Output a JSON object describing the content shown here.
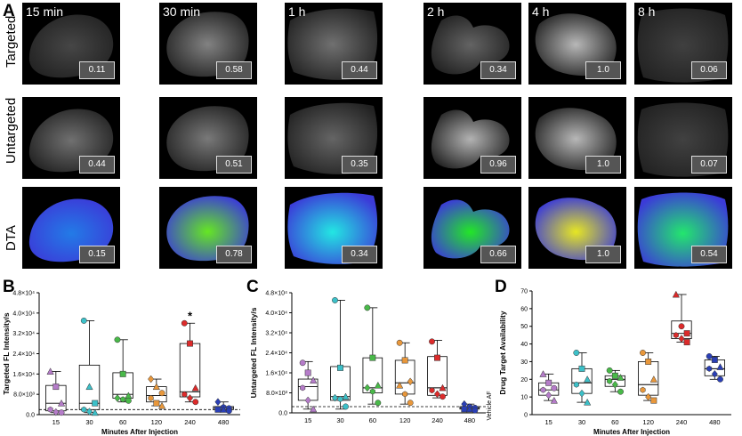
{
  "panels": {
    "A": "A",
    "B": "B",
    "C": "C",
    "D": "D"
  },
  "row_labels": {
    "targeted": "Targeted",
    "untargeted": "Untargeted",
    "dta": "DTA"
  },
  "time_labels": [
    "15 min",
    "30 min",
    "1 h",
    "2 h",
    "4 h",
    "8 h"
  ],
  "tile_values": {
    "targeted": [
      "0.11",
      "0.58",
      "0.44",
      "0.34",
      "1.0",
      "0.06"
    ],
    "untargeted": [
      "0.44",
      "0.51",
      "0.35",
      "0.96",
      "1.0",
      "0.07"
    ],
    "dta": [
      "0.15",
      "0.78",
      "0.34",
      "0.66",
      "1.0",
      "0.54"
    ]
  },
  "colors": {
    "15": "#b57cc9",
    "30": "#3cc0c8",
    "60": "#49b949",
    "120": "#e8973b",
    "240": "#dc2b2b",
    "480": "#2a3fb5"
  },
  "chart_data": [
    {
      "panel": "B",
      "type": "box",
      "ylabel": "Targeted FL Intensity/s",
      "xlabel": "Minutes After Injection",
      "categories": [
        "15",
        "30",
        "60",
        "120",
        "240",
        "480"
      ],
      "ytick_labels": [
        "0.0",
        "8.0×10³",
        "1.6×10⁴",
        "2.4×10⁴",
        "3.2×10⁴",
        "4.0×10⁴",
        "4.8×10⁴"
      ],
      "ylim": [
        0,
        48000
      ],
      "boxes": [
        {
          "min": 800,
          "q1": 1500,
          "median": 4500,
          "q3": 11500,
          "max": 17000
        },
        {
          "min": 800,
          "q1": 2000,
          "median": 4500,
          "q3": 19500,
          "max": 37000
        },
        {
          "min": 5000,
          "q1": 6500,
          "median": 8000,
          "q3": 16500,
          "max": 29500
        },
        {
          "min": 3500,
          "q1": 5000,
          "median": 7500,
          "q3": 11000,
          "max": 14000
        },
        {
          "min": 5000,
          "q1": 7000,
          "median": 9000,
          "q3": 28000,
          "max": 36000
        },
        {
          "min": 1500,
          "q1": 2000,
          "median": 2600,
          "q3": 3200,
          "max": 5000
        }
      ],
      "points": [
        [
          {
            "y": 17000,
            "m": "tri"
          },
          {
            "y": 11000,
            "m": "sq"
          },
          {
            "y": 4500,
            "m": "tri"
          },
          {
            "y": 2000,
            "m": "hex"
          },
          {
            "y": 1000,
            "m": "dia"
          },
          {
            "y": 800,
            "m": "circ"
          }
        ],
        [
          {
            "y": 37000,
            "m": "circ"
          },
          {
            "y": 11000,
            "m": "tri"
          },
          {
            "y": 4500,
            "m": "sq"
          },
          {
            "y": 2000,
            "m": "hex"
          },
          {
            "y": 1200,
            "m": "dia"
          },
          {
            "y": 800,
            "m": "tri"
          }
        ],
        [
          {
            "y": 29500,
            "m": "circ"
          },
          {
            "y": 16000,
            "m": "sq"
          },
          {
            "y": 7500,
            "m": "tri"
          },
          {
            "y": 6500,
            "m": "dia"
          },
          {
            "y": 6000,
            "m": "hex"
          },
          {
            "y": 5500,
            "m": "circ"
          }
        ],
        [
          {
            "y": 14000,
            "m": "dia"
          },
          {
            "y": 11000,
            "m": "tri"
          },
          {
            "y": 8500,
            "m": "circ"
          },
          {
            "y": 6500,
            "m": "hex"
          },
          {
            "y": 4500,
            "m": "sq"
          },
          {
            "y": 3500,
            "m": "tri"
          }
        ],
        [
          {
            "y": 36000,
            "m": "circ"
          },
          {
            "y": 28000,
            "m": "sq"
          },
          {
            "y": 10500,
            "m": "tri"
          },
          {
            "y": 8000,
            "m": "hex"
          },
          {
            "y": 6500,
            "m": "dia"
          },
          {
            "y": 5000,
            "m": "circ"
          }
        ],
        [
          {
            "y": 5000,
            "m": "dia"
          },
          {
            "y": 3000,
            "m": "hex"
          },
          {
            "y": 2500,
            "m": "circ"
          },
          {
            "y": 2000,
            "m": "sq"
          },
          {
            "y": 2000,
            "m": "tri"
          },
          {
            "y": 1500,
            "m": "circ"
          }
        ]
      ],
      "dashed_line": 2000,
      "annotation": {
        "category": "240",
        "text": "*"
      }
    },
    {
      "panel": "C",
      "type": "box",
      "ylabel": "Untargeted FL Intensity/s",
      "xlabel": "",
      "side_label": "Vehicle AF",
      "categories": [
        "15",
        "30",
        "60",
        "120",
        "240",
        "480"
      ],
      "ytick_labels": [
        "0.0",
        "8.0×10³",
        "1.6×10⁴",
        "2.4×10⁴",
        "3.2×10⁴",
        "4.0×10⁴",
        "4.8×10⁴"
      ],
      "ylim": [
        0,
        48000
      ],
      "boxes": [
        {
          "min": 1500,
          "q1": 5000,
          "median": 10500,
          "q3": 13500,
          "max": 20500
        },
        {
          "min": 1500,
          "q1": 5000,
          "median": 6500,
          "q3": 18500,
          "max": 45000
        },
        {
          "min": 3500,
          "q1": 8000,
          "median": 10000,
          "q3": 22000,
          "max": 42000
        },
        {
          "min": 3500,
          "q1": 7500,
          "median": 12000,
          "q3": 21000,
          "max": 28000
        },
        {
          "min": 6000,
          "q1": 7000,
          "median": 10000,
          "q3": 22500,
          "max": 29000
        },
        {
          "min": 1000,
          "q1": 1500,
          "median": 2000,
          "q3": 2500,
          "max": 3500
        }
      ],
      "points": [
        [
          {
            "y": 20000,
            "m": "circ"
          },
          {
            "y": 16000,
            "m": "sq"
          },
          {
            "y": 13000,
            "m": "tri"
          },
          {
            "y": 10000,
            "m": "hex"
          },
          {
            "y": 5000,
            "m": "dia"
          },
          {
            "y": 1500,
            "m": "tri"
          }
        ],
        [
          {
            "y": 45000,
            "m": "circ"
          },
          {
            "y": 18000,
            "m": "sq"
          },
          {
            "y": 6500,
            "m": "tri"
          },
          {
            "y": 6000,
            "m": "dia"
          },
          {
            "y": 5500,
            "m": "hex"
          },
          {
            "y": 2500,
            "m": "circ"
          }
        ],
        [
          {
            "y": 42000,
            "m": "circ"
          },
          {
            "y": 22000,
            "m": "sq"
          },
          {
            "y": 11000,
            "m": "tri"
          },
          {
            "y": 10000,
            "m": "dia"
          },
          {
            "y": 8500,
            "m": "hex"
          },
          {
            "y": 4000,
            "m": "circ"
          }
        ],
        [
          {
            "y": 28000,
            "m": "circ"
          },
          {
            "y": 21000,
            "m": "sq"
          },
          {
            "y": 12500,
            "m": "dia"
          },
          {
            "y": 11000,
            "m": "tri"
          },
          {
            "y": 7500,
            "m": "hex"
          },
          {
            "y": 4000,
            "m": "circ"
          }
        ],
        [
          {
            "y": 28500,
            "m": "circ"
          },
          {
            "y": 22000,
            "m": "sq"
          },
          {
            "y": 10000,
            "m": "tri"
          },
          {
            "y": 9000,
            "m": "hex"
          },
          {
            "y": 7500,
            "m": "dia"
          },
          {
            "y": 6500,
            "m": "circ"
          }
        ],
        [
          {
            "y": 3500,
            "m": "dia"
          },
          {
            "y": 2500,
            "m": "hex"
          },
          {
            "y": 2000,
            "m": "circ"
          },
          {
            "y": 1500,
            "m": "sq"
          },
          {
            "y": 1500,
            "m": "tri"
          },
          {
            "y": 1000,
            "m": "circ"
          }
        ]
      ],
      "dashed_line": 2500
    },
    {
      "panel": "D",
      "type": "box",
      "ylabel": "Drug Target Availability",
      "xlabel": "Minutes After Injection",
      "categories": [
        "15",
        "30",
        "60",
        "120",
        "240",
        "480"
      ],
      "ytick_labels": [
        "0",
        "10",
        "20",
        "30",
        "40",
        "50",
        "60",
        "70"
      ],
      "ylim": [
        0,
        70
      ],
      "boxes": [
        {
          "min": 8,
          "q1": 11,
          "median": 14,
          "q3": 18,
          "max": 23
        },
        {
          "min": 7,
          "q1": 12,
          "median": 18,
          "q3": 26,
          "max": 35
        },
        {
          "min": 13,
          "q1": 16,
          "median": 20,
          "q3": 22,
          "max": 25
        },
        {
          "min": 8,
          "q1": 11,
          "median": 17,
          "q3": 30,
          "max": 35
        },
        {
          "min": 41,
          "q1": 43,
          "median": 46,
          "q3": 53,
          "max": 68
        },
        {
          "min": 20,
          "q1": 22,
          "median": 26,
          "q3": 31,
          "max": 33
        }
      ],
      "points": [
        [
          {
            "y": 23,
            "m": "tri"
          },
          {
            "y": 18,
            "m": "sq"
          },
          {
            "y": 15,
            "m": "circ"
          },
          {
            "y": 14,
            "m": "hex"
          },
          {
            "y": 11,
            "m": "dia"
          },
          {
            "y": 8,
            "m": "tri"
          }
        ],
        [
          {
            "y": 35,
            "m": "circ"
          },
          {
            "y": 26,
            "m": "sq"
          },
          {
            "y": 20,
            "m": "tri"
          },
          {
            "y": 17,
            "m": "hex"
          },
          {
            "y": 12,
            "m": "dia"
          },
          {
            "y": 7,
            "m": "tri"
          }
        ],
        [
          {
            "y": 25,
            "m": "circ"
          },
          {
            "y": 22,
            "m": "sq"
          },
          {
            "y": 21,
            "m": "tri"
          },
          {
            "y": 19,
            "m": "hex"
          },
          {
            "y": 17,
            "m": "dia"
          },
          {
            "y": 13,
            "m": "circ"
          }
        ],
        [
          {
            "y": 35,
            "m": "circ"
          },
          {
            "y": 30,
            "m": "sq"
          },
          {
            "y": 20,
            "m": "tri"
          },
          {
            "y": 14,
            "m": "hex"
          },
          {
            "y": 10,
            "m": "dia"
          },
          {
            "y": 8,
            "m": "sq"
          }
        ],
        [
          {
            "y": 68,
            "m": "tri"
          },
          {
            "y": 50,
            "m": "circ"
          },
          {
            "y": 46,
            "m": "sq"
          },
          {
            "y": 45,
            "m": "hex"
          },
          {
            "y": 43,
            "m": "dia"
          },
          {
            "y": 41,
            "m": "sq"
          }
        ],
        [
          {
            "y": 33,
            "m": "circ"
          },
          {
            "y": 31,
            "m": "sq"
          },
          {
            "y": 27,
            "m": "tri"
          },
          {
            "y": 26,
            "m": "hex"
          },
          {
            "y": 23,
            "m": "dia"
          },
          {
            "y": 20,
            "m": "circ"
          }
        ]
      ]
    }
  ]
}
